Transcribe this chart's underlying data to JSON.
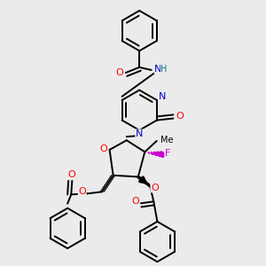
{
  "background_color": "#ebebeb",
  "bond_color": "#000000",
  "bond_width": 1.4,
  "atom_colors": {
    "N": "#0000cc",
    "O": "#ff0000",
    "F": "#cc00cc",
    "NH": "#008080"
  },
  "benz_r": 0.22,
  "pyr_r": 0.21,
  "fur_r": 0.2
}
